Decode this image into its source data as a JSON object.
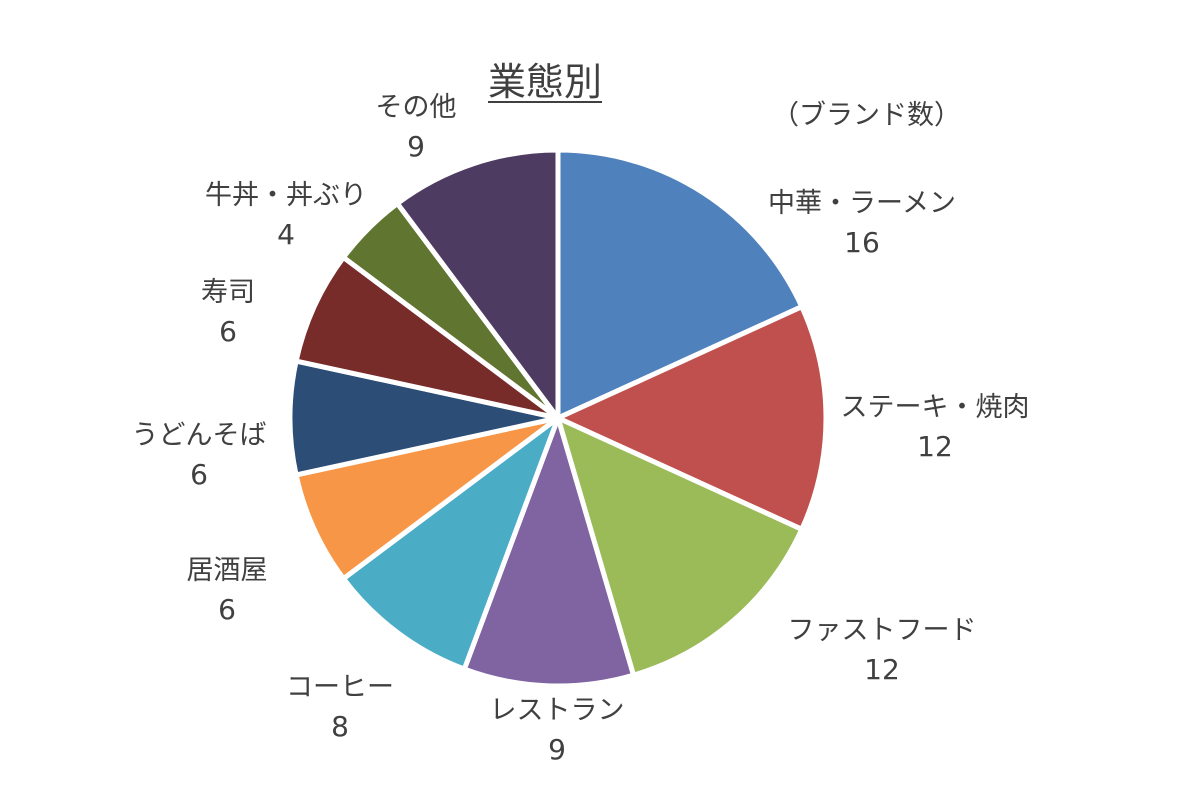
{
  "chart_data": {
    "type": "pie",
    "title": "業態別",
    "unit_label": "（ブランド数）",
    "start_angle_deg": 0,
    "direction": "clockwise",
    "slices": [
      {
        "label": "中華・ラーメン",
        "value": 16,
        "color": "#4F81BD"
      },
      {
        "label": "ステーキ・焼肉",
        "value": 12,
        "color": "#C0504D"
      },
      {
        "label": "ファストフード",
        "value": 12,
        "color": "#9BBB59"
      },
      {
        "label": "レストラン",
        "value": 9,
        "color": "#8064A2"
      },
      {
        "label": "コーヒー",
        "value": 8,
        "color": "#4BACC6"
      },
      {
        "label": "居酒屋",
        "value": 6,
        "color": "#F79646"
      },
      {
        "label": "うどんそば",
        "value": 6,
        "color": "#2C4D75"
      },
      {
        "label": "寿司",
        "value": 6,
        "color": "#772C2A"
      },
      {
        "label": "牛丼・丼ぶり",
        "value": 4,
        "color": "#5F7530"
      },
      {
        "label": "その他",
        "value": 9,
        "color": "#4D3B62"
      }
    ]
  }
}
